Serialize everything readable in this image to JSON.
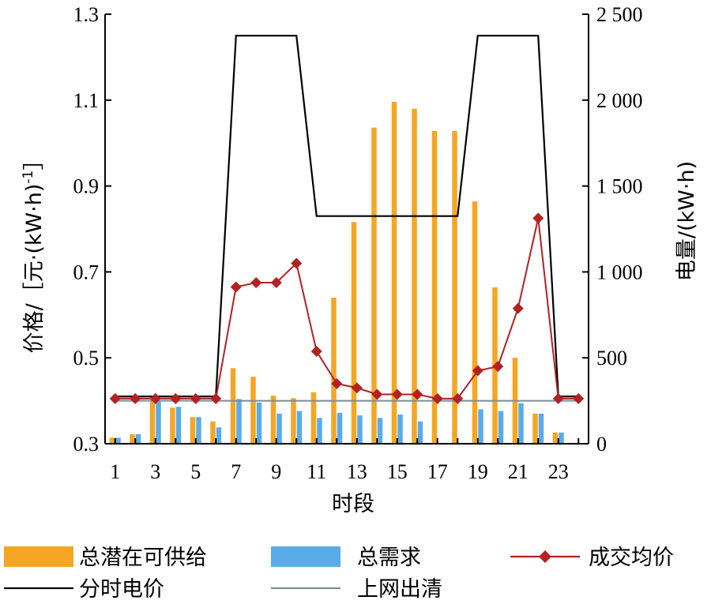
{
  "chart_data": {
    "type": "bar+line",
    "title": "",
    "xlabel": "时段",
    "ylabel_left_prefix": "价格/［元·(kW·h)",
    "ylabel_left_sup": "-1",
    "ylabel_left_suffix": "］",
    "ylabel_right": "电量/(kW·h)",
    "x": [
      1,
      2,
      3,
      4,
      5,
      6,
      7,
      8,
      9,
      10,
      11,
      12,
      13,
      14,
      15,
      16,
      17,
      18,
      19,
      20,
      21,
      22,
      23,
      24
    ],
    "x_tick_labels": [
      "1",
      "3",
      "5",
      "7",
      "9",
      "11",
      "13",
      "15",
      "17",
      "19",
      "21",
      "23"
    ],
    "left_axis": {
      "min": 0.3,
      "max": 1.3,
      "ticks": [
        "0.3",
        "0.5",
        "0.7",
        "0.9",
        "1.1",
        "1.3"
      ]
    },
    "right_axis": {
      "min": 0,
      "max": 2500,
      "ticks": [
        "0",
        "500",
        "1 000",
        "1 500",
        "2 000",
        "2 500"
      ]
    },
    "series": [
      {
        "name": "总潜在可供给",
        "kind": "bar",
        "axis": "right",
        "color": "#F5A623",
        "values": [
          35,
          55,
          250,
          210,
          155,
          130,
          440,
          390,
          280,
          265,
          300,
          850,
          1290,
          1840,
          1990,
          1950,
          1820,
          1820,
          1410,
          910,
          500,
          175,
          65,
          0
        ]
      },
      {
        "name": "总需求",
        "kind": "bar",
        "axis": "right",
        "color": "#5AACE8",
        "values": [
          35,
          55,
          250,
          215,
          155,
          95,
          260,
          240,
          175,
          190,
          150,
          180,
          165,
          150,
          170,
          130,
          0,
          0,
          200,
          190,
          235,
          175,
          65,
          0
        ]
      },
      {
        "name": "分时电价",
        "kind": "line",
        "axis": "left",
        "color": "#000000",
        "x": [
          1,
          6,
          7,
          10,
          11,
          18,
          19,
          22,
          23,
          24
        ],
        "values": [
          0.41,
          0.41,
          1.25,
          1.25,
          0.83,
          0.83,
          1.25,
          1.25,
          0.41,
          0.41
        ]
      },
      {
        "name": "上网出清",
        "kind": "line",
        "axis": "left",
        "color": "#7F8C95",
        "values": [
          0.4,
          0.4,
          0.4,
          0.4,
          0.4,
          0.4,
          0.4,
          0.4,
          0.4,
          0.4,
          0.4,
          0.4,
          0.4,
          0.4,
          0.4,
          0.4,
          0.4,
          0.4,
          0.4,
          0.4,
          0.4,
          0.4,
          0.4,
          0.4
        ]
      },
      {
        "name": "成交均价",
        "kind": "line-marker",
        "axis": "left",
        "color": "#B22222",
        "values": [
          0.405,
          0.405,
          0.405,
          0.405,
          0.405,
          0.405,
          0.665,
          0.675,
          0.675,
          0.72,
          0.515,
          0.44,
          0.43,
          0.415,
          0.415,
          0.415,
          0.405,
          0.405,
          0.47,
          0.48,
          0.615,
          0.825,
          0.405,
          0.405
        ]
      }
    ],
    "legend": {
      "placement": "bottom",
      "items": [
        {
          "label": "总潜在可供给",
          "symbol": "bar",
          "color": "#F5A623"
        },
        {
          "label": "总需求",
          "symbol": "bar",
          "color": "#5AACE8"
        },
        {
          "label": "成交均价",
          "symbol": "line-marker",
          "color": "#B22222"
        },
        {
          "label": "分时电价",
          "symbol": "line",
          "color": "#000000"
        },
        {
          "label": "上网出清",
          "symbol": "line",
          "color": "#7F8C95"
        }
      ]
    },
    "grid": false
  }
}
